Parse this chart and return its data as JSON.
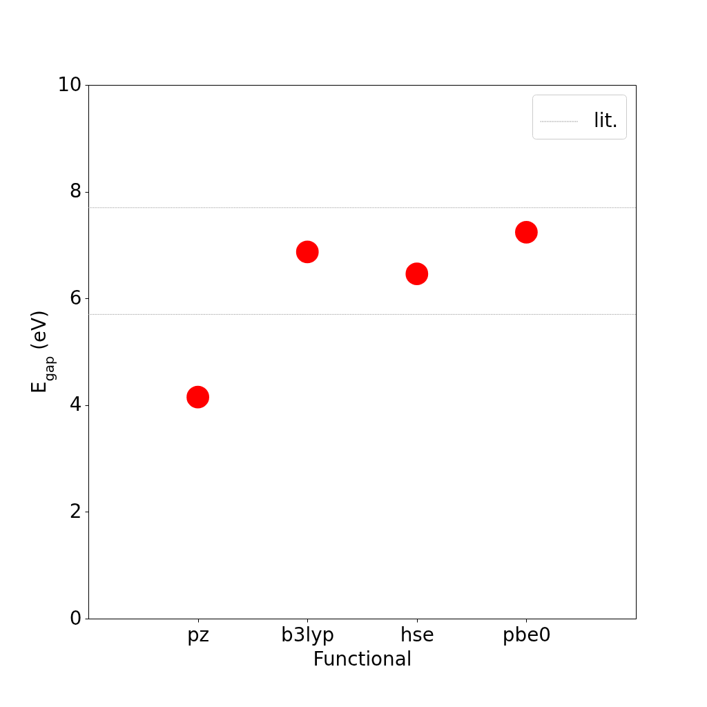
{
  "chart_data": {
    "type": "scatter",
    "xlabel": "Functional",
    "ylabel": "E$_{gap}$ (eV)",
    "categories": [
      "pz",
      "b3lyp",
      "hse",
      "pbe0"
    ],
    "series": [
      {
        "color": "#ff0000",
        "values": [
          4.15,
          6.87,
          6.46,
          7.24
        ]
      }
    ],
    "ylim": [
      0,
      10
    ],
    "yticks": [
      0,
      2,
      4,
      6,
      8,
      10
    ],
    "ref_lines": [
      {
        "axis": "y",
        "value": 7.7,
        "label": "lit.",
        "color": "#808080",
        "line_style": "dotted"
      },
      {
        "axis": "y",
        "value": 5.7,
        "color": "#808080",
        "line_style": "dotted"
      }
    ],
    "marker": "circle",
    "legend": "top right"
  }
}
